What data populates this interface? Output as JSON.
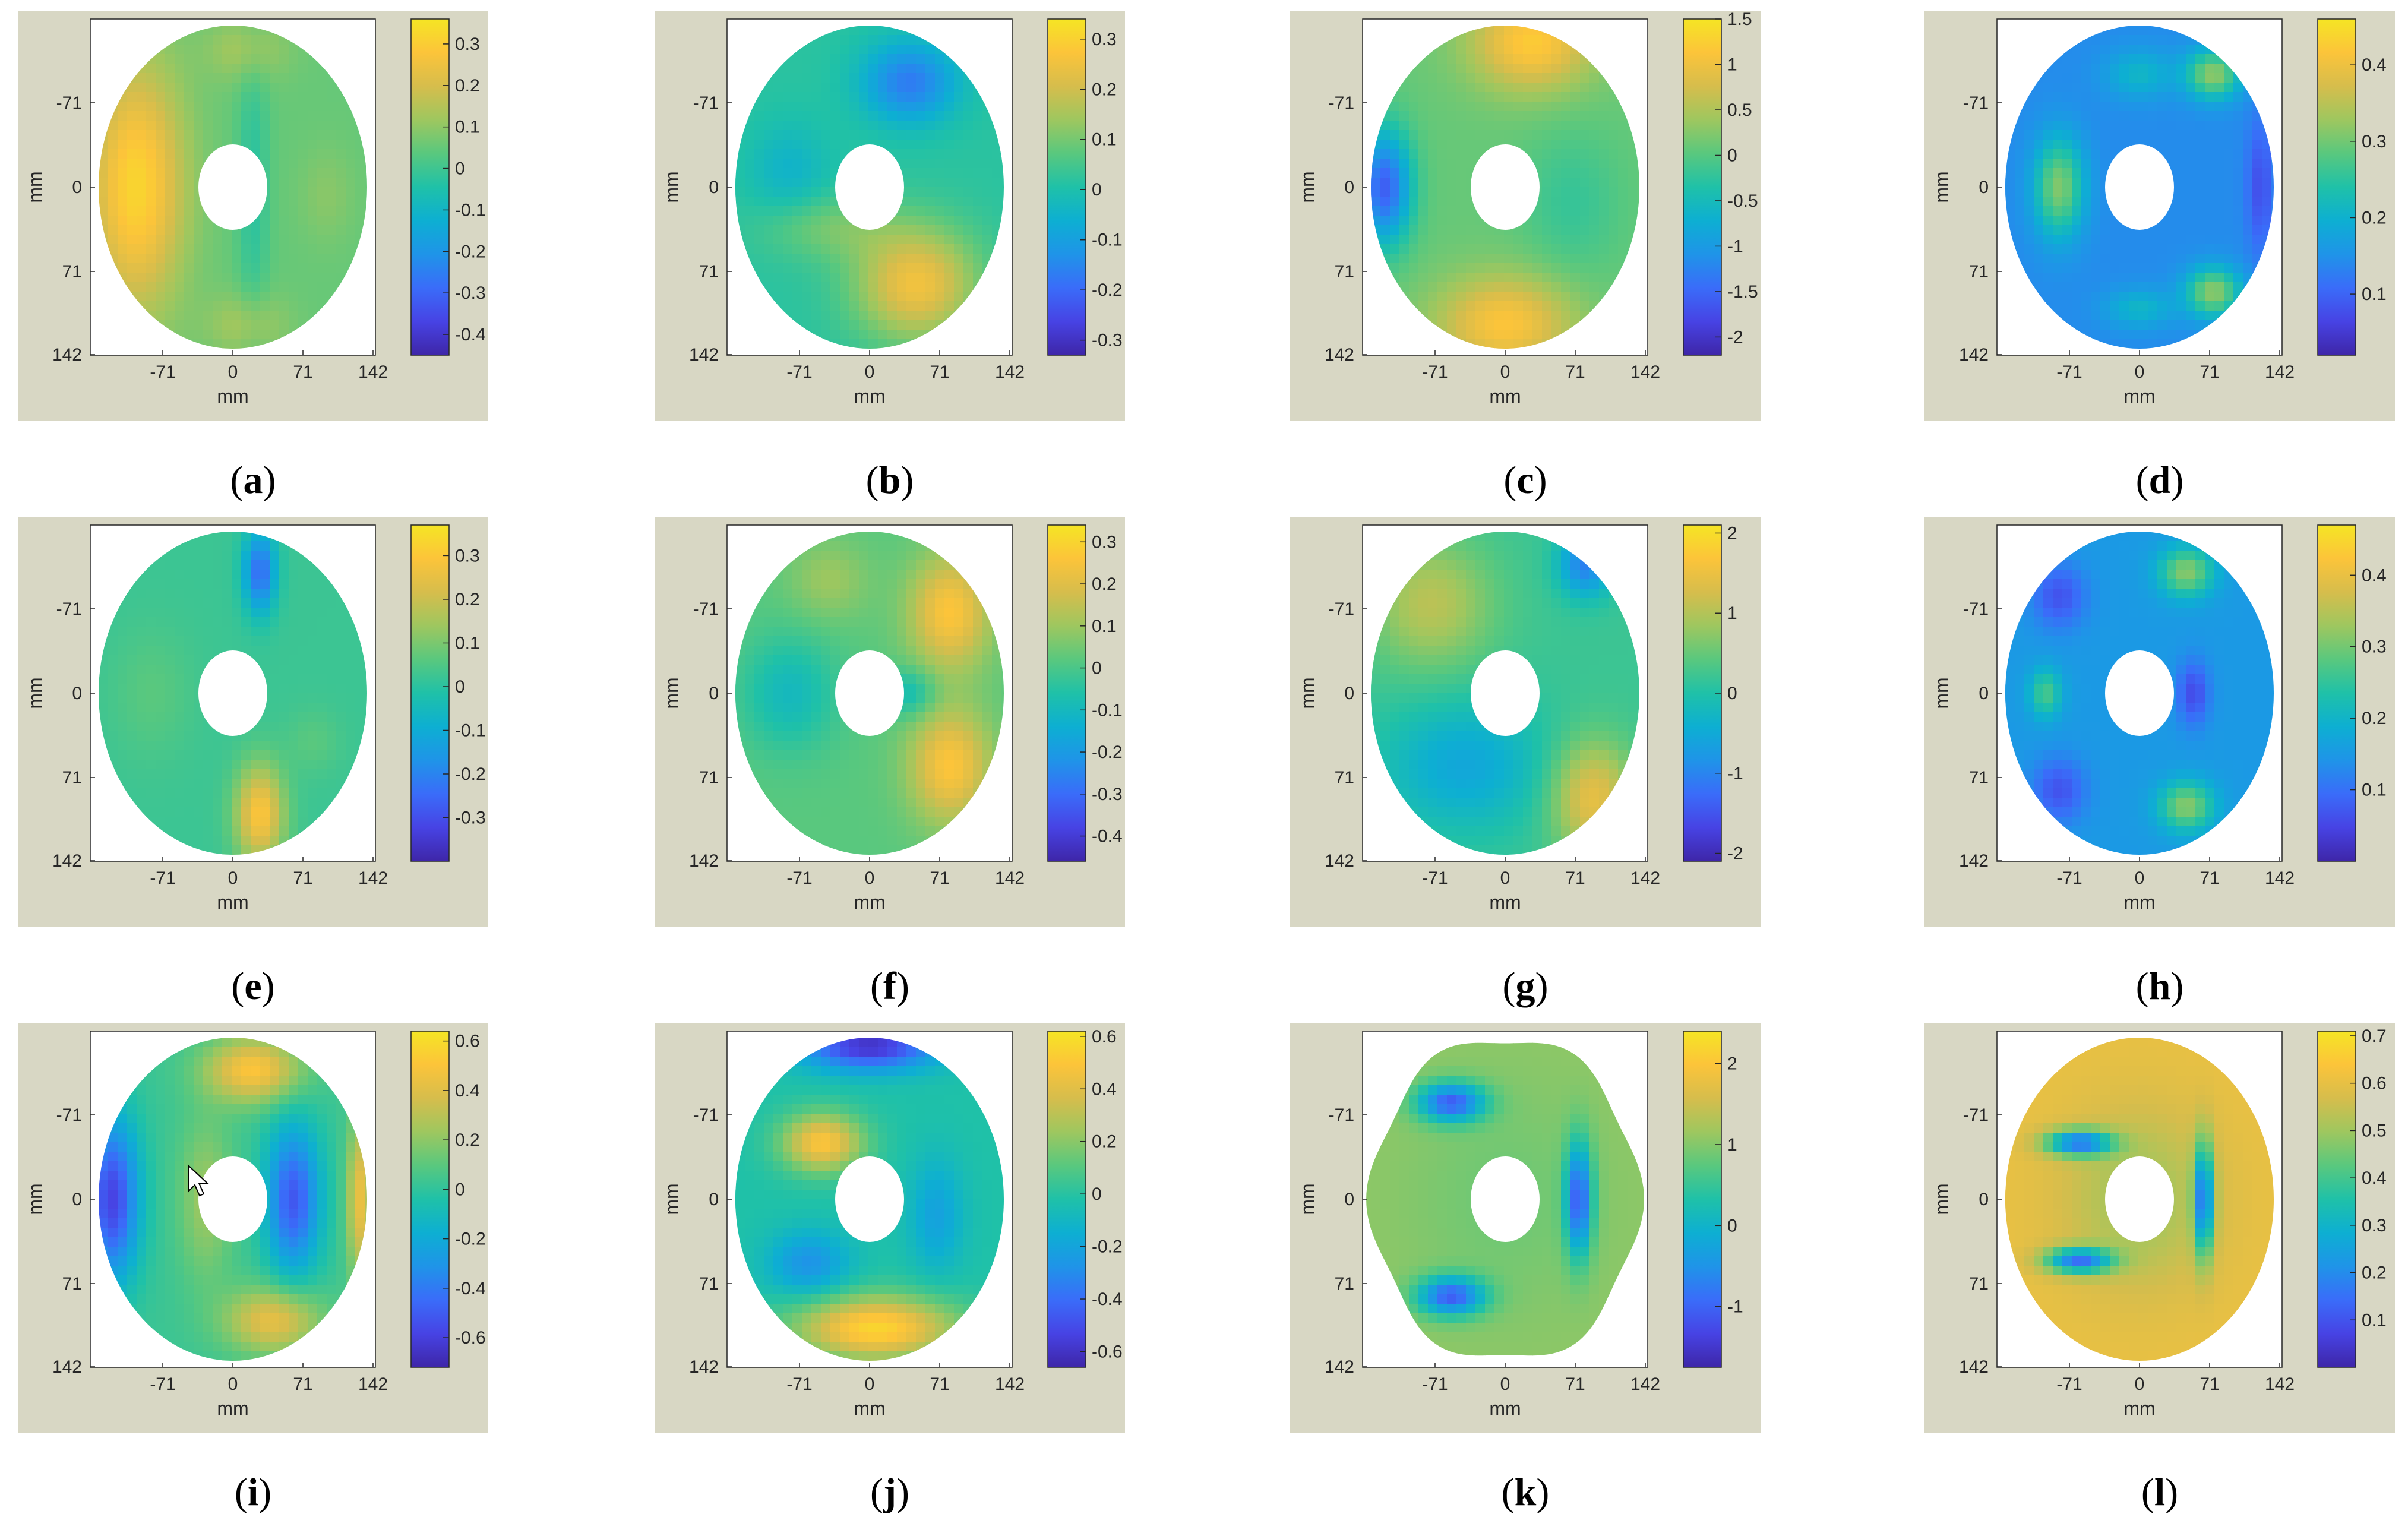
{
  "figure": {
    "panel_background": "#d8d7c4",
    "colormap": [
      "#3e26a8",
      "#4743e4",
      "#3a6cf9",
      "#1f94e8",
      "#0dafd2",
      "#1fc1a8",
      "#59c87e",
      "#9ec75f",
      "#d6bd4c",
      "#fcc43a",
      "#f5e524"
    ]
  },
  "chart_data": [
    {
      "id": "a",
      "type": "heatmap",
      "caption_letter": "a",
      "xlabel": "mm",
      "ylabel": "mm",
      "x_ticks": [
        "-71",
        "0",
        "71",
        "142"
      ],
      "y_ticks": [
        "-71",
        "0",
        "71",
        "142"
      ],
      "colorbar_ticks": [
        "0.3",
        "0.2",
        "0.1",
        "0",
        "-0.1",
        "-0.2",
        "-0.3",
        "-0.4"
      ],
      "range": [
        -0.45,
        0.36
      ],
      "pattern": "bar-x-left",
      "shape": "ellipse",
      "cursor": false
    },
    {
      "id": "b",
      "type": "heatmap",
      "caption_letter": "b",
      "xlabel": "mm",
      "ylabel": "mm",
      "x_ticks": [
        "-71",
        "0",
        "71",
        "142"
      ],
      "y_ticks": [
        "-71",
        "0",
        "71",
        "142"
      ],
      "colorbar_ticks": [
        "0.3",
        "0.2",
        "0.1",
        "0",
        "-0.1",
        "-0.2",
        "-0.3"
      ],
      "range": [
        -0.33,
        0.34
      ],
      "pattern": "bottom-right-hot",
      "shape": "ellipse",
      "cursor": false
    },
    {
      "id": "c",
      "type": "heatmap",
      "caption_letter": "c",
      "xlabel": "mm",
      "ylabel": "mm",
      "x_ticks": [
        "-71",
        "0",
        "71",
        "142"
      ],
      "y_ticks": [
        "-71",
        "0",
        "71",
        "142"
      ],
      "colorbar_ticks": [
        "1.5",
        "1",
        "0.5",
        "0",
        "-0.5",
        "-1",
        "-1.5",
        "-2"
      ],
      "range": [
        -2.2,
        1.5
      ],
      "pattern": "three-lobe-warm",
      "shape": "ellipse",
      "cursor": false
    },
    {
      "id": "d",
      "type": "heatmap",
      "caption_letter": "d",
      "xlabel": "mm",
      "ylabel": "mm",
      "x_ticks": [
        "-71",
        "0",
        "71",
        "142"
      ],
      "y_ticks": [
        "-71",
        "0",
        "71",
        "142"
      ],
      "colorbar_ticks": [
        "0.4",
        "0.3",
        "0.2",
        "0.1"
      ],
      "range": [
        0.02,
        0.46
      ],
      "pattern": "spots-cool",
      "shape": "ellipse",
      "cursor": false
    },
    {
      "id": "e",
      "type": "heatmap",
      "caption_letter": "e",
      "xlabel": "mm",
      "ylabel": "mm",
      "x_ticks": [
        "-71",
        "0",
        "71",
        "142"
      ],
      "y_ticks": [
        "-71",
        "0",
        "71",
        "142"
      ],
      "colorbar_ticks": [
        "0.3",
        "0.2",
        "0.1",
        "0",
        "-0.1",
        "-0.2",
        "-0.3"
      ],
      "range": [
        -0.4,
        0.37
      ],
      "pattern": "bar-y-bottom",
      "shape": "ellipse",
      "cursor": false
    },
    {
      "id": "f",
      "type": "heatmap",
      "caption_letter": "f",
      "xlabel": "mm",
      "ylabel": "mm",
      "x_ticks": [
        "-71",
        "0",
        "71",
        "142"
      ],
      "y_ticks": [
        "-71",
        "0",
        "71",
        "142"
      ],
      "colorbar_ticks": [
        "0.3",
        "0.2",
        "0.1",
        "0",
        "-0.1",
        "-0.2",
        "-0.3",
        "-0.4"
      ],
      "range": [
        -0.46,
        0.34
      ],
      "pattern": "right-hot",
      "shape": "ellipse",
      "cursor": false
    },
    {
      "id": "g",
      "type": "heatmap",
      "caption_letter": "g",
      "xlabel": "mm",
      "ylabel": "mm",
      "x_ticks": [
        "-71",
        "0",
        "71",
        "142"
      ],
      "y_ticks": [
        "-71",
        "0",
        "71",
        "142"
      ],
      "colorbar_ticks": [
        "2",
        "1",
        "0",
        "-1",
        "-2"
      ],
      "range": [
        -2.1,
        2.1
      ],
      "pattern": "diagonal-split",
      "shape": "ellipse",
      "cursor": false
    },
    {
      "id": "h",
      "type": "heatmap",
      "caption_letter": "h",
      "xlabel": "mm",
      "ylabel": "mm",
      "x_ticks": [
        "-71",
        "0",
        "71",
        "142"
      ],
      "y_ticks": [
        "-71",
        "0",
        "71",
        "142"
      ],
      "colorbar_ticks": [
        "0.4",
        "0.3",
        "0.2",
        "0.1"
      ],
      "range": [
        0.0,
        0.47
      ],
      "pattern": "spots-cool-2",
      "shape": "ellipse",
      "cursor": false
    },
    {
      "id": "i",
      "type": "heatmap",
      "caption_letter": "i",
      "xlabel": "mm",
      "ylabel": "mm",
      "x_ticks": [
        "-71",
        "0",
        "71",
        "142"
      ],
      "y_ticks": [
        "-71",
        "0",
        "71",
        "142"
      ],
      "colorbar_ticks": [
        "0.6",
        "0.4",
        "0.2",
        "0",
        "-0.2",
        "-0.4",
        "-0.6"
      ],
      "range": [
        -0.72,
        0.64
      ],
      "pattern": "triangle-right",
      "shape": "ellipse",
      "cursor": true
    },
    {
      "id": "j",
      "type": "heatmap",
      "caption_letter": "j",
      "xlabel": "mm",
      "ylabel": "mm",
      "x_ticks": [
        "-71",
        "0",
        "71",
        "142"
      ],
      "y_ticks": [
        "-71",
        "0",
        "71",
        "142"
      ],
      "colorbar_ticks": [
        "0.6",
        "0.4",
        "0.2",
        "0",
        "-0.2",
        "-0.4",
        "-0.6"
      ],
      "range": [
        -0.66,
        0.62
      ],
      "pattern": "triangle-left",
      "shape": "ellipse",
      "cursor": false
    },
    {
      "id": "k",
      "type": "heatmap",
      "caption_letter": "k",
      "xlabel": "mm",
      "ylabel": "mm",
      "x_ticks": [
        "-71",
        "0",
        "71",
        "142"
      ],
      "y_ticks": [
        "-71",
        "0",
        "71",
        "142"
      ],
      "colorbar_ticks": [
        "2",
        "1",
        "0",
        "-1"
      ],
      "range": [
        -1.75,
        2.4
      ],
      "pattern": "three-cool-lobes",
      "shape": "wavy",
      "cursor": false
    },
    {
      "id": "l",
      "type": "heatmap",
      "caption_letter": "l",
      "xlabel": "mm",
      "ylabel": "mm",
      "x_ticks": [
        "-71",
        "0",
        "71",
        "142"
      ],
      "y_ticks": [
        "-71",
        "0",
        "71",
        "142"
      ],
      "colorbar_ticks": [
        "0.7",
        "0.6",
        "0.5",
        "0.4",
        "0.3",
        "0.2",
        "0.1"
      ],
      "range": [
        0.0,
        0.71
      ],
      "pattern": "three-ring-bands",
      "shape": "ellipse",
      "cursor": false
    }
  ]
}
